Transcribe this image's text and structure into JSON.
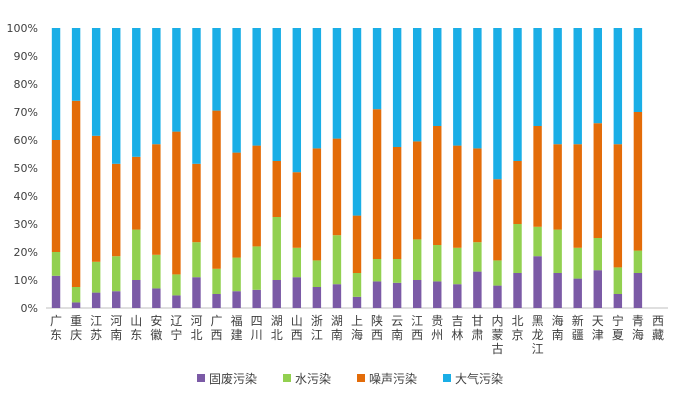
{
  "chart_data": {
    "type": "bar",
    "stacked": true,
    "percent": true,
    "ylim": [
      0,
      100
    ],
    "yticks": [
      "0%",
      "10%",
      "20%",
      "30%",
      "40%",
      "50%",
      "60%",
      "70%",
      "80%",
      "90%",
      "100%"
    ],
    "grid": false,
    "legend_position": "bottom",
    "categories": [
      "广东",
      "重庆",
      "江苏",
      "河南",
      "山东",
      "安徽",
      "辽宁",
      "河北",
      "广西",
      "福建",
      "四川",
      "湖北",
      "山西",
      "浙江",
      "湖南",
      "上海",
      "陕西",
      "云南",
      "江西",
      "贵州",
      "吉林",
      "甘肃",
      "内蒙古",
      "北京",
      "黑龙江",
      "海南",
      "新疆",
      "天津",
      "宁夏",
      "青海",
      "西藏"
    ],
    "series": [
      {
        "name": "固废污染",
        "color": "#7b5aa6",
        "values": [
          11.5,
          2,
          5.5,
          6,
          10,
          7,
          4.5,
          11,
          5,
          6,
          6.5,
          10,
          11,
          7.5,
          8.5,
          4,
          9.5,
          9,
          10,
          9.5,
          8.5,
          13,
          8,
          12.5,
          18.5,
          12.5,
          10.5,
          13.5,
          5,
          12.5,
          0
        ]
      },
      {
        "name": "水污染",
        "color": "#92d050",
        "values": [
          8.5,
          5.5,
          11,
          12.5,
          18,
          12,
          7.5,
          12.5,
          9,
          12,
          15.5,
          22.5,
          10.5,
          9.5,
          17.5,
          8.5,
          8,
          8.5,
          14.5,
          13,
          13,
          10.5,
          9,
          17.5,
          10.5,
          15.5,
          11,
          11.5,
          9.5,
          8,
          0
        ]
      },
      {
        "name": "噪声污染",
        "color": "#e36c09",
        "values": [
          40,
          66.5,
          45,
          33,
          26,
          39.5,
          51,
          28,
          56.5,
          37.5,
          36,
          20,
          27,
          40,
          34.5,
          20.5,
          53.5,
          40,
          35,
          42.5,
          36.5,
          33.5,
          29,
          22.5,
          36,
          30.5,
          37,
          41,
          44,
          49.5,
          0
        ]
      },
      {
        "name": "大气污染",
        "color": "#1aaee6",
        "values": [
          40,
          26,
          38.5,
          48.5,
          46,
          41.5,
          37,
          48.5,
          29.5,
          44.5,
          42,
          47.5,
          51.5,
          43,
          39.5,
          67,
          29,
          42.5,
          40.5,
          35,
          42,
          43,
          54,
          47.5,
          35,
          41.5,
          41.5,
          34,
          41.5,
          30,
          0
        ]
      }
    ]
  }
}
